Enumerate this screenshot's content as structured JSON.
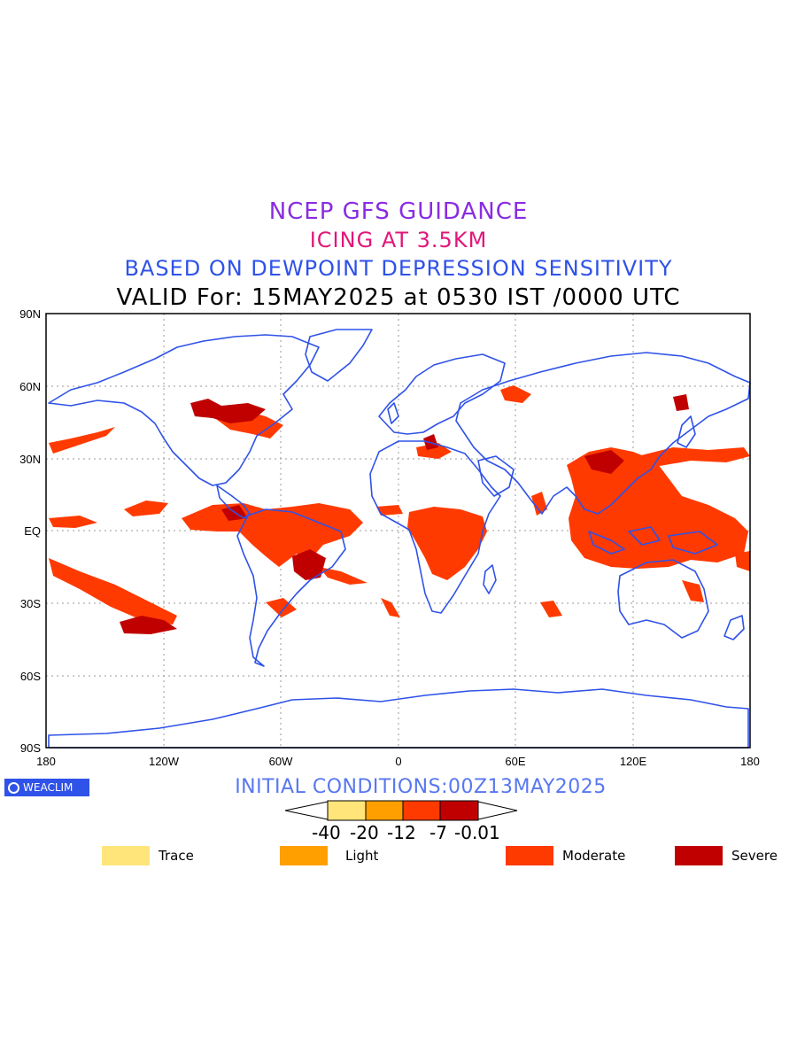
{
  "titles": {
    "line1": "NCEP GFS GUIDANCE",
    "line2": "ICING AT 3.5KM",
    "line3": "BASED ON DEWPOINT DEPRESSION SENSITIVITY",
    "line4": "VALID For: 15MAY2025 at 0530 IST /0000 UTC"
  },
  "axes": {
    "y_labels": [
      "90N",
      "60N",
      "30N",
      "EQ",
      "30S",
      "60S",
      "90S"
    ],
    "x_labels": [
      "180",
      "120W",
      "60W",
      "0",
      "60E",
      "120E",
      "180"
    ],
    "y_values": [
      90,
      60,
      30,
      0,
      -30,
      -60,
      -90
    ],
    "x_values": [
      -180,
      -120,
      -60,
      0,
      60,
      120,
      180
    ]
  },
  "brand": "WEACLIM",
  "initial_conditions": "INITIAL CONDITIONS:00Z13MAY2025",
  "colorbar": {
    "ticks": [
      "-40",
      "-20",
      "-12",
      "-7",
      "-0.01"
    ],
    "colors": [
      "#ffe57a",
      "#ff9f00",
      "#ff3a00",
      "#c00000"
    ]
  },
  "legend": [
    {
      "label": "Trace",
      "color": "#ffe57a"
    },
    {
      "label": "Light",
      "color": "#ff9f00"
    },
    {
      "label": "Moderate",
      "color": "#ff3a00"
    },
    {
      "label": "Severe",
      "color": "#c00000"
    }
  ],
  "colors": {
    "coastline": "#2f52e8",
    "moderate": "#ff3a00",
    "severe": "#c00000"
  }
}
